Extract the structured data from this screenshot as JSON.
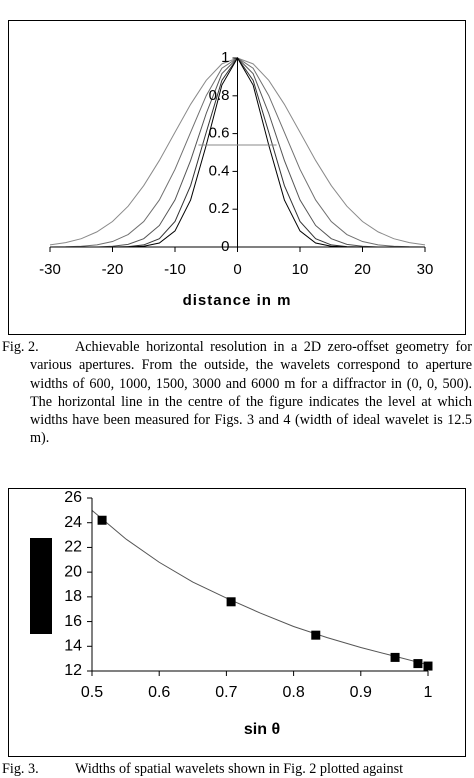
{
  "chart_data": [
    {
      "type": "line",
      "x_label": "distance in m",
      "x": [
        -30,
        -27.5,
        -25,
        -22.5,
        -20,
        -17.5,
        -15,
        -12.5,
        -10,
        -7.5,
        -5,
        -2.5,
        0,
        2.5,
        5,
        7.5,
        10,
        12.5,
        15,
        17.5,
        20,
        22.5,
        25,
        27.5,
        30
      ],
      "series": [
        {
          "color": "#8a8a8a",
          "values": [
            0.011,
            0.023,
            0.044,
            0.08,
            0.135,
            0.216,
            0.325,
            0.458,
            0.607,
            0.755,
            0.882,
            0.969,
            1,
            0.969,
            0.882,
            0.755,
            0.607,
            0.458,
            0.325,
            0.216,
            0.135,
            0.08,
            0.044,
            0.023,
            0.011
          ]
        },
        {
          "color": "#707070",
          "values": [
            0,
            0.001,
            0.004,
            0.011,
            0.029,
            0.066,
            0.135,
            0.249,
            0.411,
            0.607,
            0.801,
            0.946,
            1,
            0.946,
            0.801,
            0.607,
            0.411,
            0.249,
            0.135,
            0.066,
            0.029,
            0.011,
            0.004,
            0.001,
            0
          ]
        },
        {
          "color": "#555555",
          "values": [
            0,
            0,
            0,
            0,
            0.004,
            0.014,
            0.044,
            0.114,
            0.249,
            0.458,
            0.707,
            0.917,
            1,
            0.917,
            0.707,
            0.458,
            0.249,
            0.114,
            0.044,
            0.014,
            0.004,
            0,
            0,
            0,
            0
          ]
        },
        {
          "color": "#333333",
          "values": [
            0,
            0,
            0,
            0,
            0,
            0.002,
            0.011,
            0.044,
            0.135,
            0.325,
            0.607,
            0.882,
            1,
            0.882,
            0.607,
            0.325,
            0.135,
            0.044,
            0.011,
            0.002,
            0,
            0,
            0,
            0,
            0
          ]
        },
        {
          "color": "#000000",
          "values": [
            0,
            0,
            0,
            0,
            0,
            0,
            0.004,
            0.021,
            0.085,
            0.249,
            0.539,
            0.857,
            1,
            0.857,
            0.539,
            0.249,
            0.085,
            0.021,
            0.004,
            0,
            0,
            0,
            0,
            0,
            0
          ]
        }
      ],
      "hline": {
        "y": 0.54,
        "x": [
          -6.25,
          6.25
        ],
        "color": "#888888"
      },
      "xlim": [
        -30,
        30
      ],
      "xticks": [
        -30,
        -20,
        -10,
        0,
        10,
        20,
        30
      ],
      "ylim": [
        0,
        1
      ],
      "yticks": [
        0,
        0.2,
        0.4,
        0.6,
        0.8,
        1
      ]
    },
    {
      "type": "scatter",
      "x_label": "sin θ",
      "x": [
        0.515,
        0.707,
        0.833,
        0.951,
        0.985,
        1
      ],
      "values": [
        24.2,
        17.6,
        14.9,
        13.1,
        12.6,
        12.4
      ],
      "color": "#000000",
      "fit": {
        "x": [
          0.5,
          0.55,
          0.6,
          0.65,
          0.7,
          0.75,
          0.8,
          0.85,
          0.9,
          0.95,
          1
        ],
        "values": [
          25,
          22.7,
          20.8,
          19.2,
          17.9,
          16.7,
          15.6,
          14.7,
          13.9,
          13.2,
          12.5
        ],
        "color": "#555555"
      },
      "xlim": [
        0.5,
        1
      ],
      "xticks": [
        0.5,
        0.6,
        0.7,
        0.8,
        0.9,
        1
      ],
      "ylim": [
        12,
        26
      ],
      "yticks": [
        12,
        14,
        16,
        18,
        20,
        22,
        24,
        26
      ]
    }
  ],
  "captions": [
    {
      "label": "Fig. 2.",
      "text": "Achievable horizontal resolution in a 2D zero-offset geometry for various apertures. From the outside, the wavelets correspond to aperture widths of 600, 1000, 1500, 3000 and 6000 m for a diffractor in (0, 0, 500). The horizontal line in the centre of the figure indicates the level at which widths have been measured for Figs. 3 and 4 (width of ideal wavelet is 12.5 m)."
    },
    {
      "label": "Fig. 3.",
      "text": "Widths of spatial wavelets shown in Fig. 2 plotted against"
    }
  ]
}
